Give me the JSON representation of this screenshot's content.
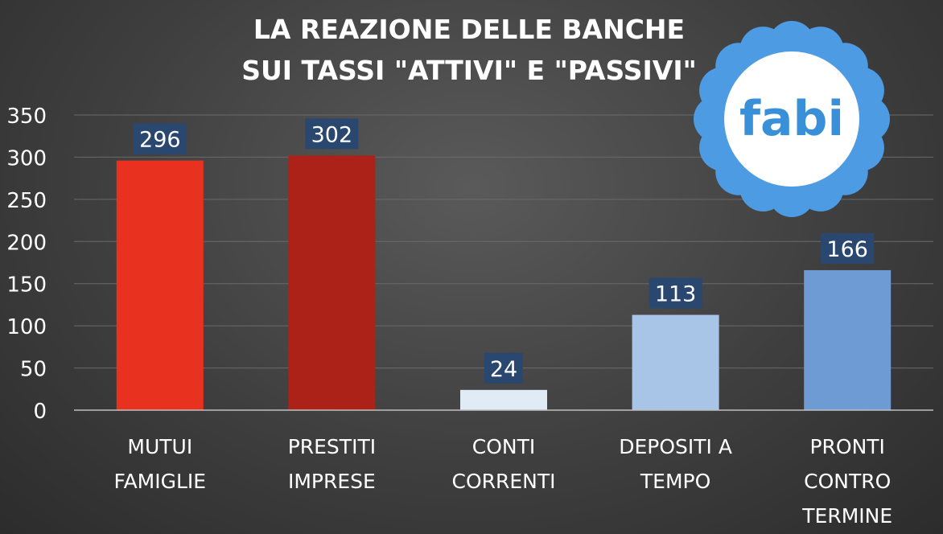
{
  "chart_data": {
    "type": "bar",
    "title": [
      "LA REAZIONE DELLE BANCHE",
      "SUI TASSI \"ATTIVI\" E \"PASSIVI\""
    ],
    "categories": [
      [
        "MUTUI",
        "FAMIGLIE"
      ],
      [
        "PRESTITI",
        "IMPRESE"
      ],
      [
        "CONTI",
        "CORRENTI"
      ],
      [
        "DEPOSITI A",
        "TEMPO"
      ],
      [
        "PRONTI",
        "CONTRO",
        "TERMINE"
      ]
    ],
    "values": [
      296,
      302,
      24,
      113,
      166
    ],
    "bar_colors": [
      "#e8321f",
      "#ad2218",
      "#e1ebf6",
      "#a8c4e6",
      "#6f9bd4"
    ],
    "label_bg": "#29476f",
    "ylim": [
      0,
      350
    ],
    "yticks": [
      0,
      50,
      100,
      150,
      200,
      250,
      300,
      350
    ],
    "grid": true,
    "xlabel": "",
    "ylabel": ""
  },
  "logo": {
    "text": "fabi",
    "petal_color": "#4c9be3",
    "center_color": "#ffffff",
    "text_color": "#3a90d8"
  }
}
